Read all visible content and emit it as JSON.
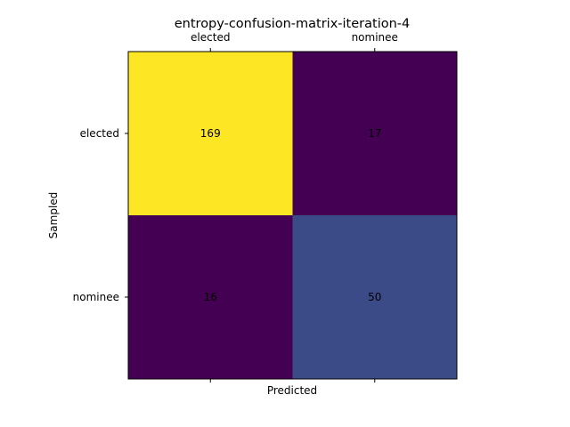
{
  "chart_data": {
    "type": "heatmap",
    "title": "entropy-confusion-matrix-iteration-4",
    "xlabel": "Predicted",
    "ylabel": "Sampled",
    "x_categories": [
      "elected",
      "nominee"
    ],
    "y_categories": [
      "elected",
      "nominee"
    ],
    "values": [
      [
        169,
        17
      ],
      [
        16,
        50
      ]
    ],
    "colormap": "viridis",
    "cell_colors": [
      [
        "#fde725",
        "#440154"
      ],
      [
        "#440154",
        "#3b4b87"
      ]
    ],
    "x_tick_position": "top",
    "grid": false,
    "legend": "none"
  }
}
